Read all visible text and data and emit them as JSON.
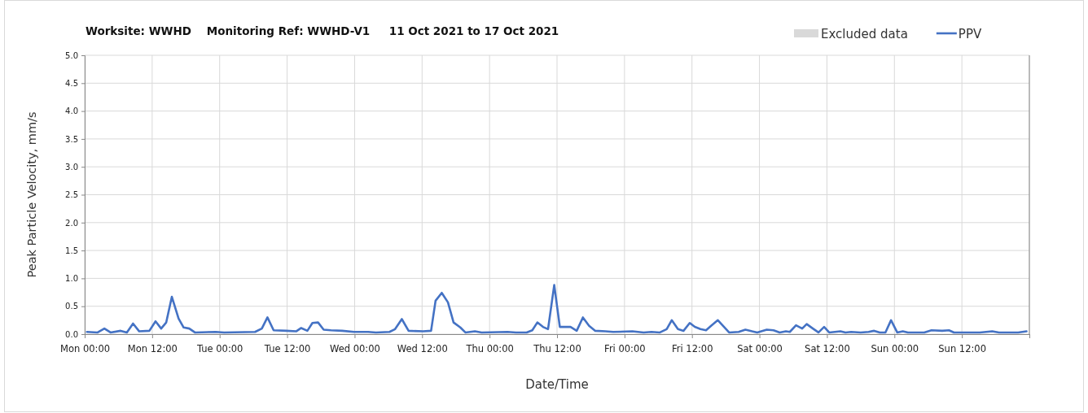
{
  "chart_data": {
    "type": "line",
    "title": "Worksite: WWHD    Monitoring Ref: WWHD-V1     11 Oct 2021 to 17 Oct 2021",
    "xlabel": "Date/Time",
    "ylabel": "Peak Particle Velocity, mm/s",
    "xlim": [
      "2021-10-11T00:00",
      "2021-10-18T00:00"
    ],
    "xticks": [
      {
        "value": "2021-10-11T00:00",
        "label": "Mon 00:00"
      },
      {
        "value": "2021-10-11T12:00",
        "label": "Mon 12:00"
      },
      {
        "value": "2021-10-12T00:00",
        "label": "Tue 00:00"
      },
      {
        "value": "2021-10-12T12:00",
        "label": "Tue 12:00"
      },
      {
        "value": "2021-10-13T00:00",
        "label": "Wed 00:00"
      },
      {
        "value": "2021-10-13T12:00",
        "label": "Wed 12:00"
      },
      {
        "value": "2021-10-14T00:00",
        "label": "Thu 00:00"
      },
      {
        "value": "2021-10-14T12:00",
        "label": "Thu 12:00"
      },
      {
        "value": "2021-10-15T00:00",
        "label": "Fri 00:00"
      },
      {
        "value": "2021-10-15T12:00",
        "label": "Fri 12:00"
      },
      {
        "value": "2021-10-16T00:00",
        "label": "Sat 00:00"
      },
      {
        "value": "2021-10-16T12:00",
        "label": "Sat 12:00"
      },
      {
        "value": "2021-10-17T00:00",
        "label": "Sun 00:00"
      },
      {
        "value": "2021-10-17T12:00",
        "label": "Sun 12:00"
      },
      {
        "value": "2021-10-18T00:00",
        "label": null
      }
    ],
    "ylim": [
      0,
      5
    ],
    "yticks": [
      {
        "value": 0,
        "label": "0.0"
      },
      {
        "value": 0.5,
        "label": "0.5"
      },
      {
        "value": 1,
        "label": "1.0"
      },
      {
        "value": 1.5,
        "label": "1.5"
      },
      {
        "value": 2,
        "label": "2.0"
      },
      {
        "value": 2.5,
        "label": "2.5"
      },
      {
        "value": 3,
        "label": "3.0"
      },
      {
        "value": 3.5,
        "label": "3.5"
      },
      {
        "value": 4,
        "label": "4.0"
      },
      {
        "value": 4.5,
        "label": "4.5"
      },
      {
        "value": 5,
        "label": "5.0"
      }
    ],
    "grid": true,
    "legend": "top right",
    "series": [
      {
        "name": "Excluded data",
        "type": "area",
        "color": "#d9d9d9"
      },
      {
        "name": "PPV",
        "color": "#4472c4",
        "x": [
          "2021-10-11T00:24",
          "2021-10-11T02:18",
          "2021-10-11T03:30",
          "2021-10-11T04:36",
          "2021-10-11T06:24",
          "2021-10-11T07:30",
          "2021-10-11T08:36",
          "2021-10-11T09:42",
          "2021-10-11T11:30",
          "2021-10-11T12:36",
          "2021-10-11T13:36",
          "2021-10-11T14:30",
          "2021-10-11T15:30",
          "2021-10-11T16:42",
          "2021-10-11T17:36",
          "2021-10-11T18:36",
          "2021-10-11T19:36",
          "2021-10-11T23:18",
          "2021-10-12T00:48",
          "2021-10-12T06:18",
          "2021-10-12T07:30",
          "2021-10-12T08:30",
          "2021-10-12T09:36",
          "2021-10-12T11:54",
          "2021-10-12T13:36",
          "2021-10-12T14:30",
          "2021-10-12T15:36",
          "2021-10-12T16:30",
          "2021-10-12T17:30",
          "2021-10-12T18:30",
          "2021-10-12T19:48",
          "2021-10-12T21:48",
          "2021-10-12T23:54",
          "2021-10-13T02:24",
          "2021-10-13T03:48",
          "2021-10-13T06:12",
          "2021-10-13T07:12",
          "2021-10-13T08:24",
          "2021-10-13T09:36",
          "2021-10-13T12:12",
          "2021-10-13T13:36",
          "2021-10-13T14:24",
          "2021-10-13T15:30",
          "2021-10-13T16:36",
          "2021-10-13T17:36",
          "2021-10-13T18:48",
          "2021-10-13T19:42",
          "2021-10-13T21:24",
          "2021-10-13T22:36",
          "2021-10-14T03:12",
          "2021-10-14T04:42",
          "2021-10-14T06:36",
          "2021-10-14T07:36",
          "2021-10-14T08:30",
          "2021-10-14T09:30",
          "2021-10-14T10:24",
          "2021-10-14T11:30",
          "2021-10-14T12:30",
          "2021-10-14T14:24",
          "2021-10-14T15:30",
          "2021-10-14T16:36",
          "2021-10-14T17:42",
          "2021-10-14T18:48",
          "2021-10-14T20:36",
          "2021-10-14T22:00",
          "2021-10-15T01:24",
          "2021-10-15T03:24",
          "2021-10-15T04:48",
          "2021-10-15T06:18",
          "2021-10-15T07:30",
          "2021-10-15T08:24",
          "2021-10-15T09:30",
          "2021-10-15T10:30",
          "2021-10-15T11:36",
          "2021-10-15T12:30",
          "2021-10-15T13:30",
          "2021-10-15T14:30",
          "2021-10-15T15:24",
          "2021-10-15T16:36",
          "2021-10-15T17:36",
          "2021-10-15T18:36",
          "2021-10-15T20:18",
          "2021-10-15T21:30",
          "2021-10-15T22:42",
          "2021-10-15T23:36",
          "2021-10-16T01:18",
          "2021-10-16T02:30",
          "2021-10-16T03:36",
          "2021-10-16T04:42",
          "2021-10-16T05:24",
          "2021-10-16T06:30",
          "2021-10-16T07:36",
          "2021-10-16T08:24",
          "2021-10-16T09:30",
          "2021-10-16T10:30",
          "2021-10-16T11:30",
          "2021-10-16T12:24",
          "2021-10-16T14:24",
          "2021-10-16T15:18",
          "2021-10-16T16:18",
          "2021-10-16T18:00",
          "2021-10-16T19:24",
          "2021-10-16T20:24",
          "2021-10-16T21:24",
          "2021-10-16T22:24",
          "2021-10-16T23:24",
          "2021-10-17T00:30",
          "2021-10-17T01:30",
          "2021-10-17T02:24",
          "2021-10-17T05:18",
          "2021-10-17T06:36",
          "2021-10-17T08:30",
          "2021-10-17T09:42",
          "2021-10-17T10:36",
          "2021-10-17T13:00",
          "2021-10-17T15:12",
          "2021-10-17T17:24",
          "2021-10-17T18:36",
          "2021-10-17T22:00",
          "2021-10-17T23:30"
        ],
        "values": [
          0.04,
          0.03,
          0.1,
          0.03,
          0.06,
          0.03,
          0.19,
          0.05,
          0.06,
          0.23,
          0.1,
          0.21,
          0.67,
          0.28,
          0.12,
          0.1,
          0.03,
          0.04,
          0.03,
          0.04,
          0.1,
          0.3,
          0.07,
          0.06,
          0.05,
          0.11,
          0.06,
          0.2,
          0.21,
          0.08,
          0.07,
          0.06,
          0.04,
          0.04,
          0.03,
          0.04,
          0.09,
          0.27,
          0.06,
          0.05,
          0.06,
          0.6,
          0.74,
          0.57,
          0.21,
          0.12,
          0.03,
          0.05,
          0.03,
          0.04,
          0.03,
          0.03,
          0.07,
          0.21,
          0.13,
          0.09,
          0.88,
          0.13,
          0.13,
          0.06,
          0.3,
          0.15,
          0.06,
          0.05,
          0.04,
          0.05,
          0.03,
          0.04,
          0.03,
          0.09,
          0.25,
          0.09,
          0.06,
          0.2,
          0.13,
          0.09,
          0.07,
          0.15,
          0.25,
          0.14,
          0.03,
          0.04,
          0.08,
          0.05,
          0.03,
          0.08,
          0.07,
          0.03,
          0.05,
          0.04,
          0.16,
          0.1,
          0.18,
          0.1,
          0.03,
          0.13,
          0.03,
          0.05,
          0.03,
          0.04,
          0.03,
          0.04,
          0.06,
          0.03,
          0.03,
          0.25,
          0.03,
          0.05,
          0.03,
          0.03,
          0.07,
          0.06,
          0.07,
          0.03,
          0.03,
          0.03,
          0.05,
          0.03,
          0.03,
          0.05
        ]
      }
    ]
  }
}
